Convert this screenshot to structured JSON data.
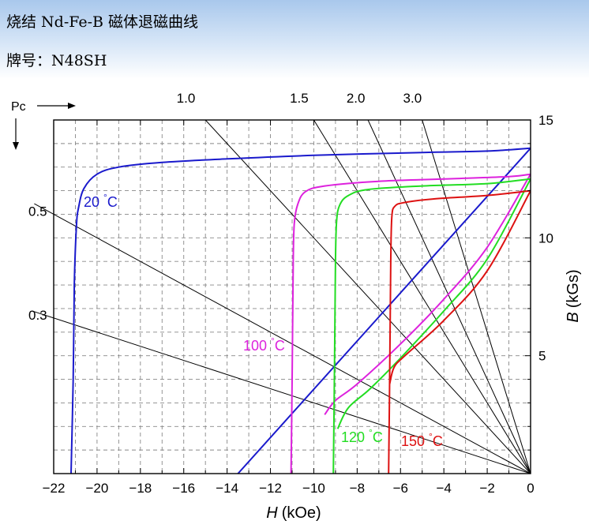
{
  "header": {
    "title": "烧结 Nd-Fe-B 磁体退磁曲线",
    "grade": "牌号：N48SH"
  },
  "chart_data": {
    "type": "line",
    "xlabel": "H (kOe)",
    "ylabel": "B (kGs)",
    "x_axis_var": "H",
    "x_axis_unit": "(kOe)",
    "y_axis_var": "B",
    "y_axis_unit": "(kGs)",
    "xlim": [
      -22,
      0
    ],
    "ylim": [
      0,
      15
    ],
    "x_ticks": [
      "-22",
      "-20",
      "-18",
      "-16",
      "-14",
      "-12",
      "-10",
      "-8",
      "-6",
      "-4",
      "-2",
      "0"
    ],
    "y_ticks": [
      "5",
      "10",
      "15"
    ],
    "grid": true,
    "pc_label": "Pc",
    "pc_left_ticks": [
      "0.5",
      "0.3"
    ],
    "load_lines": [
      {
        "label": "1.0",
        "pc": 1.0
      },
      {
        "label": "1.5",
        "pc": 1.5
      },
      {
        "label": "2.0",
        "pc": 2.0
      },
      {
        "label": "3.0",
        "pc": 3.0
      },
      {
        "pc": 0.5
      },
      {
        "pc": 0.3
      }
    ],
    "series": [
      {
        "name": "20 °C",
        "temp": "20",
        "unit": "°C",
        "color": "#1a1acc",
        "demag_curve": [
          [
            -21.2,
            0
          ],
          [
            -21.1,
            4
          ],
          [
            -21.05,
            8
          ],
          [
            -20.95,
            10.5
          ],
          [
            -20.85,
            11.3
          ],
          [
            -20.6,
            12.1
          ],
          [
            -20.0,
            12.7
          ],
          [
            -19.0,
            13.0
          ],
          [
            -17.0,
            13.2
          ],
          [
            -14.0,
            13.35
          ],
          [
            -10.0,
            13.5
          ],
          [
            -5.0,
            13.62
          ],
          [
            -2.0,
            13.68
          ],
          [
            0,
            13.8
          ]
        ],
        "recoil_line": [
          [
            -13.5,
            0
          ],
          [
            0,
            13.8
          ]
        ]
      },
      {
        "name": "100 °C",
        "temp": "100",
        "unit": "°C",
        "color": "#dd22dd",
        "demag_curve": [
          [
            -11.05,
            0
          ],
          [
            -11.0,
            4
          ],
          [
            -10.95,
            9
          ],
          [
            -10.9,
            10.6
          ],
          [
            -10.75,
            11.4
          ],
          [
            -10.4,
            11.95
          ],
          [
            -9.5,
            12.2
          ],
          [
            -7.0,
            12.4
          ],
          [
            -4.0,
            12.5
          ],
          [
            -1.0,
            12.6
          ],
          [
            0,
            12.7
          ]
        ],
        "recoil_line": [
          [
            -9.5,
            2.5
          ],
          [
            -9.0,
            3.1
          ],
          [
            -8.0,
            3.8
          ],
          [
            -6.0,
            5.5
          ],
          [
            -4.0,
            7.4
          ],
          [
            -2.0,
            9.6
          ],
          [
            0,
            12.7
          ]
        ]
      },
      {
        "name": "120 °C",
        "temp": "120",
        "unit": "°C",
        "color": "#22dd22",
        "demag_curve": [
          [
            -9.1,
            0
          ],
          [
            -9.05,
            4
          ],
          [
            -9.0,
            9
          ],
          [
            -8.95,
            10.7
          ],
          [
            -8.8,
            11.4
          ],
          [
            -8.4,
            11.8
          ],
          [
            -7.5,
            12.05
          ],
          [
            -5.0,
            12.2
          ],
          [
            -2.0,
            12.3
          ],
          [
            0,
            12.5
          ]
        ],
        "recoil_line": [
          [
            -8.9,
            1.9
          ],
          [
            -8.4,
            2.8
          ],
          [
            -7.4,
            3.6
          ],
          [
            -6.0,
            4.9
          ],
          [
            -4.0,
            6.9
          ],
          [
            -2.0,
            9.1
          ],
          [
            0,
            12.5
          ]
        ]
      },
      {
        "name": "150 °C",
        "temp": "150",
        "unit": "°C",
        "color": "#dd1111",
        "demag_curve": [
          [
            -6.55,
            0
          ],
          [
            -6.5,
            4
          ],
          [
            -6.45,
            9
          ],
          [
            -6.4,
            10.9
          ],
          [
            -6.25,
            11.35
          ],
          [
            -5.8,
            11.5
          ],
          [
            -4.5,
            11.65
          ],
          [
            -2.0,
            11.8
          ],
          [
            0,
            12.0
          ]
        ],
        "recoil_line": [
          [
            -6.5,
            3.8
          ],
          [
            -6.3,
            4.5
          ],
          [
            -5.8,
            5.0
          ],
          [
            -4.0,
            6.5
          ],
          [
            -2.0,
            8.6
          ],
          [
            0,
            12.0
          ]
        ]
      }
    ]
  }
}
